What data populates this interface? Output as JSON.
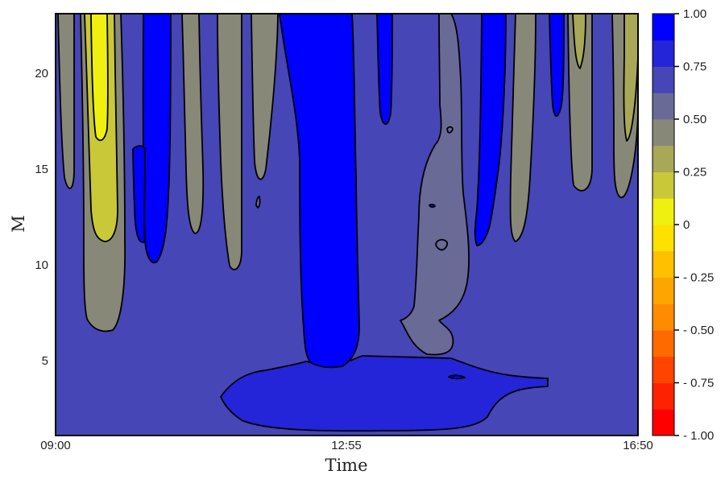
{
  "chart_data": {
    "type": "heatmap",
    "subtype": "filled-contour",
    "title": "",
    "xlabel": "Time",
    "ylabel": "M",
    "x_ticks": [
      "09:00",
      "12:55",
      "16:50"
    ],
    "y_ticks": [
      5,
      10,
      15,
      20
    ],
    "ylim": [
      1,
      23
    ],
    "grid": false,
    "colorbar": {
      "range": [
        -1.0,
        1.0
      ],
      "tick_labels": [
        "1.00",
        "0.75",
        "0.50",
        "0.25",
        "0",
        "- 0.25",
        "- 0.50",
        "- 0.75",
        "- 1.00"
      ],
      "levels": [
        {
          "from": -1.0,
          "to": -0.875,
          "color": "#ff0000"
        },
        {
          "from": -0.875,
          "to": -0.75,
          "color": "#ff2200"
        },
        {
          "from": -0.75,
          "to": -0.625,
          "color": "#ff4400"
        },
        {
          "from": -0.625,
          "to": -0.5,
          "color": "#ff6a00"
        },
        {
          "from": -0.5,
          "to": -0.375,
          "color": "#ff8c00"
        },
        {
          "from": -0.375,
          "to": -0.25,
          "color": "#ffa500"
        },
        {
          "from": -0.25,
          "to": -0.125,
          "color": "#ffc000"
        },
        {
          "from": -0.125,
          "to": 0.0,
          "color": "#ffe100"
        },
        {
          "from": 0.0,
          "to": 0.125,
          "color": "#f0f010"
        },
        {
          "from": 0.125,
          "to": 0.25,
          "color": "#c8c838"
        },
        {
          "from": 0.25,
          "to": 0.375,
          "color": "#a8a858"
        },
        {
          "from": 0.375,
          "to": 0.5,
          "color": "#888878"
        },
        {
          "from": 0.5,
          "to": 0.625,
          "color": "#6a6a96"
        },
        {
          "from": 0.625,
          "to": 0.75,
          "color": "#4646b6"
        },
        {
          "from": 0.75,
          "to": 0.875,
          "color": "#2424d8"
        },
        {
          "from": 0.875,
          "to": 1.0,
          "color": "#0000ff"
        }
      ]
    },
    "background_level": 0.7,
    "regions": [
      {
        "name": "low-band",
        "level": 0.85,
        "x": [
          0.28,
          0.74
        ],
        "y": [
          1.2,
          4.5
        ],
        "color": "#2424d8"
      },
      {
        "name": "central-column",
        "level": 0.95,
        "x": [
          0.39,
          0.5
        ],
        "y": [
          4.5,
          23
        ],
        "color": "#0000ff"
      },
      {
        "name": "left-yellow-column",
        "level": 0.1,
        "x": [
          0.05,
          0.09
        ],
        "y": [
          12,
          23
        ],
        "color": "#f0f010"
      },
      {
        "name": "left-gray-column",
        "level": 0.45,
        "x": [
          0.04,
          0.12
        ],
        "y": [
          6.5,
          23
        ],
        "color": "#888878"
      },
      {
        "name": "blue-column-a",
        "level": 0.95,
        "x": [
          0.15,
          0.2
        ],
        "y": [
          10,
          23
        ],
        "color": "#0000ff"
      },
      {
        "name": "blue-column-b",
        "level": 0.95,
        "x": [
          0.72,
          0.78
        ],
        "y": [
          10.8,
          23
        ],
        "color": "#0000ff"
      },
      {
        "name": "right-gray-column",
        "level": 0.4,
        "x": [
          0.95,
          1.0
        ],
        "y": [
          12.5,
          23
        ],
        "color": "#888878"
      }
    ]
  },
  "colors": {
    "plot_border": "#000000",
    "contour_line": "#000000",
    "background": "#ffffff"
  }
}
